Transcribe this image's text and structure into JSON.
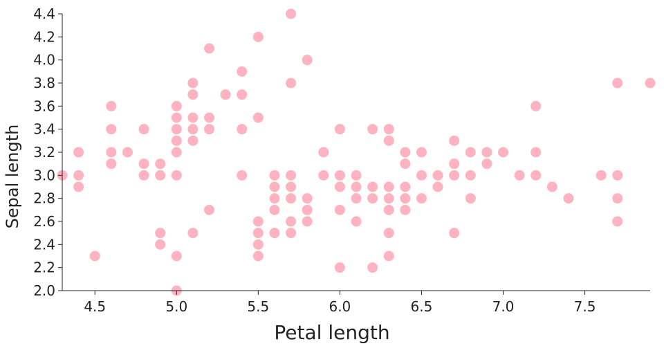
{
  "chart_data": {
    "type": "scatter",
    "title": "",
    "xlabel": "Petal length",
    "ylabel": "Sepal length",
    "xlim": [
      4.3,
      7.9
    ],
    "ylim": [
      2.0,
      4.4
    ],
    "x_ticks": [
      "4.5",
      "5.0",
      "5.5",
      "6.0",
      "6.5",
      "7.0",
      "7.5"
    ],
    "x_tick_values": [
      4.5,
      5.0,
      5.5,
      6.0,
      6.5,
      7.0,
      7.5
    ],
    "y_ticks": [
      "2.0",
      "2.2",
      "2.4",
      "2.6",
      "2.8",
      "3.0",
      "3.2",
      "3.4",
      "3.6",
      "3.8",
      "4.0",
      "4.2",
      "4.4"
    ],
    "y_tick_values": [
      2.0,
      2.2,
      2.4,
      2.6,
      2.8,
      3.0,
      3.2,
      3.4,
      3.6,
      3.8,
      4.0,
      4.2,
      4.4
    ],
    "grid": false,
    "marker_color": "#ffb3c1",
    "series": [
      {
        "points": [
          [
            4.3,
            3.0
          ],
          [
            4.4,
            3.2
          ],
          [
            4.4,
            3.0
          ],
          [
            4.4,
            2.9
          ],
          [
            4.5,
            2.3
          ],
          [
            4.6,
            3.6
          ],
          [
            4.6,
            3.4
          ],
          [
            4.6,
            3.2
          ],
          [
            4.6,
            3.1
          ],
          [
            4.7,
            3.2
          ],
          [
            4.8,
            3.4
          ],
          [
            4.8,
            3.1
          ],
          [
            4.8,
            3.0
          ],
          [
            4.9,
            3.1
          ],
          [
            4.9,
            3.0
          ],
          [
            4.9,
            2.5
          ],
          [
            4.9,
            2.4
          ],
          [
            5.0,
            3.6
          ],
          [
            5.0,
            3.5
          ],
          [
            5.0,
            3.4
          ],
          [
            5.0,
            3.3
          ],
          [
            5.0,
            3.2
          ],
          [
            5.0,
            3.0
          ],
          [
            5.0,
            2.3
          ],
          [
            5.0,
            2.0
          ],
          [
            5.1,
            3.8
          ],
          [
            5.1,
            3.7
          ],
          [
            5.1,
            3.5
          ],
          [
            5.1,
            3.4
          ],
          [
            5.1,
            3.3
          ],
          [
            5.1,
            2.5
          ],
          [
            5.2,
            4.1
          ],
          [
            5.2,
            3.5
          ],
          [
            5.2,
            3.4
          ],
          [
            5.2,
            2.7
          ],
          [
            5.3,
            3.7
          ],
          [
            5.4,
            3.9
          ],
          [
            5.4,
            3.7
          ],
          [
            5.4,
            3.4
          ],
          [
            5.4,
            3.0
          ],
          [
            5.5,
            4.2
          ],
          [
            5.5,
            3.5
          ],
          [
            5.5,
            2.6
          ],
          [
            5.5,
            2.5
          ],
          [
            5.5,
            2.4
          ],
          [
            5.5,
            2.3
          ],
          [
            5.6,
            3.0
          ],
          [
            5.6,
            2.9
          ],
          [
            5.6,
            2.8
          ],
          [
            5.6,
            2.7
          ],
          [
            5.6,
            2.5
          ],
          [
            5.7,
            4.4
          ],
          [
            5.7,
            3.8
          ],
          [
            5.7,
            3.0
          ],
          [
            5.7,
            2.9
          ],
          [
            5.7,
            2.8
          ],
          [
            5.7,
            2.6
          ],
          [
            5.7,
            2.5
          ],
          [
            5.8,
            4.0
          ],
          [
            5.8,
            2.8
          ],
          [
            5.8,
            2.7
          ],
          [
            5.8,
            2.6
          ],
          [
            5.9,
            3.2
          ],
          [
            5.9,
            3.0
          ],
          [
            6.0,
            3.4
          ],
          [
            6.0,
            3.0
          ],
          [
            6.0,
            2.9
          ],
          [
            6.0,
            2.7
          ],
          [
            6.0,
            2.2
          ],
          [
            6.1,
            3.0
          ],
          [
            6.1,
            2.9
          ],
          [
            6.1,
            2.8
          ],
          [
            6.1,
            2.6
          ],
          [
            6.2,
            3.4
          ],
          [
            6.2,
            2.9
          ],
          [
            6.2,
            2.8
          ],
          [
            6.2,
            2.2
          ],
          [
            6.3,
            3.4
          ],
          [
            6.3,
            3.3
          ],
          [
            6.3,
            2.9
          ],
          [
            6.3,
            2.8
          ],
          [
            6.3,
            2.7
          ],
          [
            6.3,
            2.5
          ],
          [
            6.3,
            2.3
          ],
          [
            6.4,
            3.2
          ],
          [
            6.4,
            3.1
          ],
          [
            6.4,
            2.9
          ],
          [
            6.4,
            2.8
          ],
          [
            6.4,
            2.7
          ],
          [
            6.5,
            3.2
          ],
          [
            6.5,
            3.0
          ],
          [
            6.5,
            2.8
          ],
          [
            6.6,
            3.0
          ],
          [
            6.6,
            2.9
          ],
          [
            6.7,
            3.3
          ],
          [
            6.7,
            3.1
          ],
          [
            6.7,
            3.0
          ],
          [
            6.7,
            2.5
          ],
          [
            6.8,
            3.2
          ],
          [
            6.8,
            3.0
          ],
          [
            6.8,
            2.8
          ],
          [
            6.9,
            3.2
          ],
          [
            6.9,
            3.1
          ],
          [
            7.0,
            3.2
          ],
          [
            7.1,
            3.0
          ],
          [
            7.2,
            3.6
          ],
          [
            7.2,
            3.2
          ],
          [
            7.2,
            3.0
          ],
          [
            7.3,
            2.9
          ],
          [
            7.4,
            2.8
          ],
          [
            7.6,
            3.0
          ],
          [
            7.7,
            3.8
          ],
          [
            7.7,
            3.0
          ],
          [
            7.7,
            2.8
          ],
          [
            7.7,
            2.6
          ],
          [
            7.9,
            3.8
          ]
        ]
      }
    ]
  }
}
